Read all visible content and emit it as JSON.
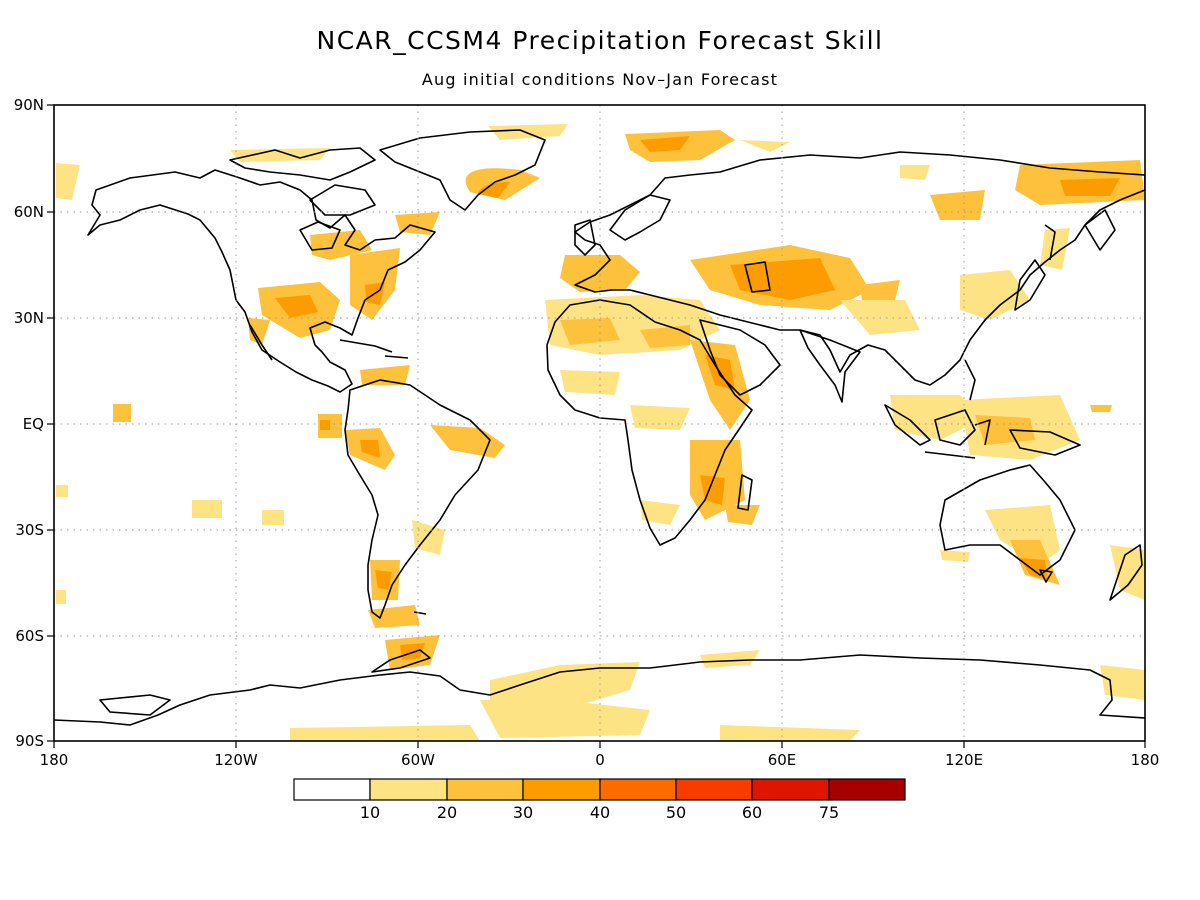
{
  "title": "NCAR_CCSM4 Precipitation Forecast Skill",
  "subtitle": "Aug initial conditions   Nov–Jan Forecast",
  "lat_ticks": [
    "90N",
    "60N",
    "30N",
    "EQ",
    "30S",
    "60S",
    "90S"
  ],
  "lon_ticks": [
    "180",
    "120W",
    "60W",
    "0",
    "60E",
    "120E",
    "180"
  ],
  "colorbar": {
    "labels": [
      "10",
      "20",
      "30",
      "40",
      "50",
      "60",
      "75"
    ],
    "colors": [
      "#ffffff",
      "#fee384",
      "#fdc13b",
      "#fd9c00",
      "#fc6b00",
      "#f83c00",
      "#de1500",
      "#a80000"
    ]
  },
  "map": {
    "projection": "cylindrical-equidistant",
    "lon_range": [
      -180,
      180
    ],
    "lat_range": [
      -90,
      90
    ],
    "grid": "dotted"
  }
}
